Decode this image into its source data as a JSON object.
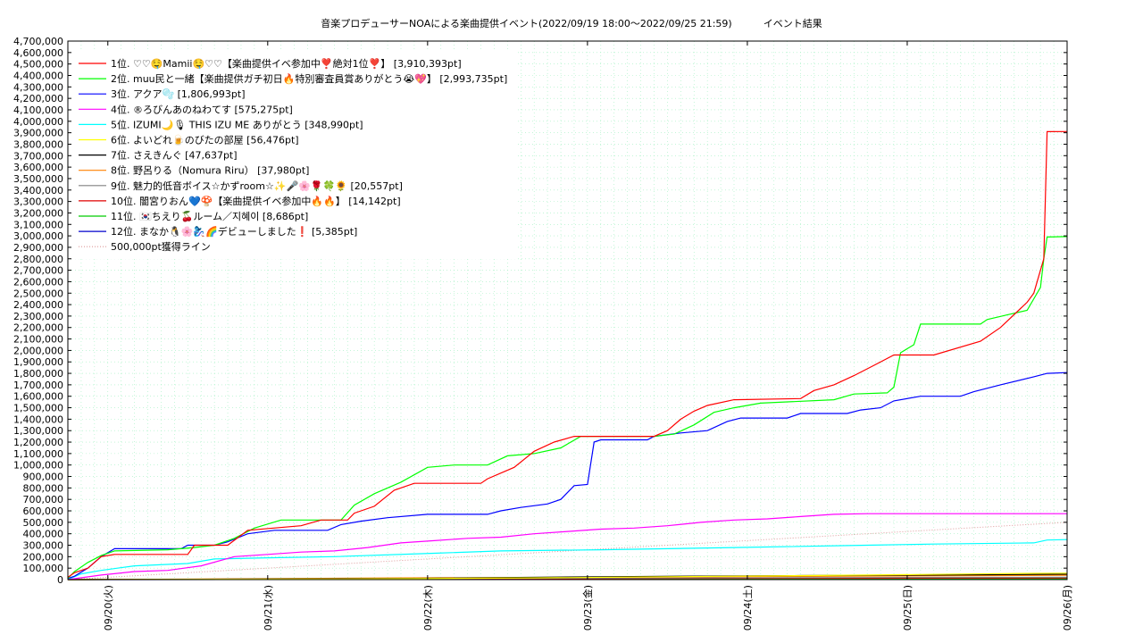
{
  "chart_data": {
    "type": "line",
    "title": "音楽プロデューサーNOAによる楽曲提供イベント(2022/09/19 18:00〜2022/09/25 21:59)",
    "subtitle": "イベント結果",
    "ylim": [
      0,
      4700000
    ],
    "ytick_step": 100000,
    "xlim_hours": [
      0,
      150
    ],
    "x_ticks": [
      {
        "label": "09/20(火)",
        "h": 6
      },
      {
        "label": "09/21(水)",
        "h": 30
      },
      {
        "label": "09/22(木)",
        "h": 54
      },
      {
        "label": "09/23(金)",
        "h": 78
      },
      {
        "label": "09/24(土)",
        "h": 102
      },
      {
        "label": "09/25(日)",
        "h": 126
      },
      {
        "label": "09/26(月)",
        "h": 150
      }
    ],
    "grid": true,
    "legend_position": "top-left",
    "series": [
      {
        "name": "1位. ♡♡🤤Mamii🤤♡♡【楽曲提供イベ参加中❣️絶対1位❣️】 [3,910,393pt]",
        "color": "#ff0000",
        "points": [
          [
            0,
            20000
          ],
          [
            1,
            60000
          ],
          [
            3,
            100000
          ],
          [
            5,
            200000
          ],
          [
            7,
            220000
          ],
          [
            14,
            220000
          ],
          [
            18,
            220000
          ],
          [
            19,
            300000
          ],
          [
            24,
            300000
          ],
          [
            27,
            430000
          ],
          [
            35,
            470000
          ],
          [
            38,
            520000
          ],
          [
            42,
            520000
          ],
          [
            43,
            580000
          ],
          [
            46,
            640000
          ],
          [
            49,
            780000
          ],
          [
            52,
            840000
          ],
          [
            62,
            840000
          ],
          [
            63,
            880000
          ],
          [
            67,
            980000
          ],
          [
            70,
            1120000
          ],
          [
            73,
            1200000
          ],
          [
            76,
            1250000
          ],
          [
            88,
            1250000
          ],
          [
            90,
            1300000
          ],
          [
            92,
            1400000
          ],
          [
            94,
            1470000
          ],
          [
            96,
            1520000
          ],
          [
            100,
            1570000
          ],
          [
            110,
            1580000
          ],
          [
            112,
            1650000
          ],
          [
            115,
            1700000
          ],
          [
            118,
            1780000
          ],
          [
            121,
            1870000
          ],
          [
            124,
            1960000
          ],
          [
            130,
            1960000
          ],
          [
            137,
            2080000
          ],
          [
            140,
            2200000
          ],
          [
            144,
            2420000
          ],
          [
            145,
            2500000
          ],
          [
            146.5,
            2800000
          ],
          [
            147,
            3910000
          ],
          [
            150,
            3910393
          ]
        ]
      },
      {
        "name": "2位. muu民と一緒【楽曲提供ガチ初日🔥特別審査員賞ありがとう😭💖】 [2,993,735pt]",
        "color": "#00ff00",
        "points": [
          [
            0,
            10000
          ],
          [
            1,
            70000
          ],
          [
            3,
            150000
          ],
          [
            5,
            210000
          ],
          [
            7,
            250000
          ],
          [
            15,
            260000
          ],
          [
            19,
            280000
          ],
          [
            22,
            300000
          ],
          [
            25,
            360000
          ],
          [
            28,
            450000
          ],
          [
            32,
            520000
          ],
          [
            41,
            520000
          ],
          [
            43,
            650000
          ],
          [
            46,
            750000
          ],
          [
            50,
            850000
          ],
          [
            54,
            980000
          ],
          [
            58,
            1000000
          ],
          [
            63,
            1000000
          ],
          [
            66,
            1080000
          ],
          [
            70,
            1100000
          ],
          [
            74,
            1150000
          ],
          [
            77,
            1250000
          ],
          [
            88,
            1250000
          ],
          [
            91,
            1270000
          ],
          [
            94,
            1350000
          ],
          [
            97,
            1460000
          ],
          [
            100,
            1500000
          ],
          [
            104,
            1540000
          ],
          [
            115,
            1570000
          ],
          [
            118,
            1620000
          ],
          [
            123,
            1630000
          ],
          [
            124,
            1680000
          ],
          [
            125,
            1980000
          ],
          [
            127,
            2050000
          ],
          [
            128,
            2230000
          ],
          [
            137,
            2230000
          ],
          [
            138,
            2270000
          ],
          [
            141,
            2310000
          ],
          [
            144,
            2350000
          ],
          [
            146,
            2550000
          ],
          [
            146.5,
            2800000
          ],
          [
            147,
            2990000
          ],
          [
            150,
            2993735
          ]
        ]
      },
      {
        "name": "3位. アクア🫧 [1,806,993pt]",
        "color": "#0000ff",
        "points": [
          [
            0,
            10000
          ],
          [
            1,
            30000
          ],
          [
            3,
            100000
          ],
          [
            5,
            200000
          ],
          [
            7,
            270000
          ],
          [
            17,
            270000
          ],
          [
            18,
            300000
          ],
          [
            22,
            300000
          ],
          [
            24,
            330000
          ],
          [
            27,
            400000
          ],
          [
            31,
            430000
          ],
          [
            39,
            430000
          ],
          [
            41,
            480000
          ],
          [
            44,
            510000
          ],
          [
            48,
            540000
          ],
          [
            54,
            570000
          ],
          [
            63,
            570000
          ],
          [
            65,
            600000
          ],
          [
            68,
            630000
          ],
          [
            72,
            660000
          ],
          [
            74,
            700000
          ],
          [
            76,
            820000
          ],
          [
            78,
            830000
          ],
          [
            79,
            1200000
          ],
          [
            80,
            1220000
          ],
          [
            87,
            1220000
          ],
          [
            88,
            1250000
          ],
          [
            92,
            1280000
          ],
          [
            96,
            1300000
          ],
          [
            99,
            1380000
          ],
          [
            101,
            1410000
          ],
          [
            108,
            1410000
          ],
          [
            110,
            1450000
          ],
          [
            117,
            1450000
          ],
          [
            119,
            1480000
          ],
          [
            122,
            1500000
          ],
          [
            124,
            1560000
          ],
          [
            128,
            1600000
          ],
          [
            134,
            1600000
          ],
          [
            136,
            1640000
          ],
          [
            140,
            1700000
          ],
          [
            145,
            1770000
          ],
          [
            147,
            1800000
          ],
          [
            150,
            1806993
          ]
        ]
      },
      {
        "name": "4位. ®ろびんあのねわてす [575,275pt]",
        "color": "#ff00ff",
        "points": [
          [
            0,
            0
          ],
          [
            5,
            40000
          ],
          [
            10,
            70000
          ],
          [
            15,
            80000
          ],
          [
            20,
            120000
          ],
          [
            25,
            200000
          ],
          [
            30,
            220000
          ],
          [
            35,
            240000
          ],
          [
            40,
            250000
          ],
          [
            45,
            280000
          ],
          [
            50,
            320000
          ],
          [
            55,
            340000
          ],
          [
            60,
            360000
          ],
          [
            65,
            370000
          ],
          [
            70,
            400000
          ],
          [
            75,
            420000
          ],
          [
            80,
            440000
          ],
          [
            85,
            450000
          ],
          [
            90,
            470000
          ],
          [
            95,
            500000
          ],
          [
            100,
            520000
          ],
          [
            105,
            530000
          ],
          [
            110,
            550000
          ],
          [
            115,
            570000
          ],
          [
            120,
            575000
          ],
          [
            150,
            575275
          ]
        ]
      },
      {
        "name": "5位. IZUMI🌙🎙 THIS IZU ME ありがとう [348,990pt]",
        "color": "#00ffff",
        "points": [
          [
            0,
            0
          ],
          [
            2,
            50000
          ],
          [
            5,
            80000
          ],
          [
            10,
            120000
          ],
          [
            18,
            140000
          ],
          [
            22,
            180000
          ],
          [
            30,
            190000
          ],
          [
            40,
            200000
          ],
          [
            55,
            230000
          ],
          [
            65,
            250000
          ],
          [
            80,
            260000
          ],
          [
            100,
            280000
          ],
          [
            120,
            300000
          ],
          [
            130,
            310000
          ],
          [
            145,
            320000
          ],
          [
            147,
            345000
          ],
          [
            150,
            348990
          ]
        ]
      },
      {
        "name": "6位. よいどれ🍺のびたの部屋 [56,476pt]",
        "color": "#ffff00",
        "points": [
          [
            0,
            0
          ],
          [
            40,
            5000
          ],
          [
            70,
            15000
          ],
          [
            100,
            30000
          ],
          [
            120,
            40000
          ],
          [
            140,
            52000
          ],
          [
            150,
            56476
          ]
        ]
      },
      {
        "name": "7位. さえきんぐ [47,637pt]",
        "color": "#000000",
        "points": [
          [
            0,
            0
          ],
          [
            20,
            3000
          ],
          [
            50,
            10000
          ],
          [
            80,
            25000
          ],
          [
            110,
            35000
          ],
          [
            130,
            40000
          ],
          [
            150,
            47637
          ]
        ]
      },
      {
        "name": "8位. 野呂りる（Nomura Riru） [37,980pt]",
        "color": "#ff8000",
        "points": [
          [
            0,
            0
          ],
          [
            20,
            5000
          ],
          [
            50,
            15000
          ],
          [
            80,
            20000
          ],
          [
            110,
            28000
          ],
          [
            140,
            35000
          ],
          [
            150,
            37980
          ]
        ]
      },
      {
        "name": "9位. 魅力的低音ボイス☆かずroom☆✨🎤🌸🌹🍀🌻 [20,557pt]",
        "color": "#808080",
        "points": [
          [
            0,
            0
          ],
          [
            30,
            5000
          ],
          [
            60,
            10000
          ],
          [
            90,
            14000
          ],
          [
            120,
            18000
          ],
          [
            150,
            20557
          ]
        ]
      },
      {
        "name": "10位. 闇宮りおん💙🍄【楽曲提供イベ参加中🔥🔥】 [14,142pt]",
        "color": "#e00000",
        "points": [
          [
            0,
            0
          ],
          [
            30,
            3000
          ],
          [
            60,
            7000
          ],
          [
            90,
            10000
          ],
          [
            120,
            12000
          ],
          [
            150,
            14142
          ]
        ]
      },
      {
        "name": "11位. 🇰🇷ちえり🍒ルーム／지혜이 [8,686pt]",
        "color": "#00cc00",
        "points": [
          [
            0,
            0
          ],
          [
            40,
            2000
          ],
          [
            80,
            5000
          ],
          [
            120,
            7000
          ],
          [
            150,
            8686
          ]
        ]
      },
      {
        "name": "12位. まなか🐧🌸🧞‍♀️🌈デビューしました❗️ [5,385pt]",
        "color": "#0000cc",
        "points": [
          [
            0,
            0
          ],
          [
            40,
            1000
          ],
          [
            80,
            3000
          ],
          [
            120,
            4500
          ],
          [
            150,
            5385
          ]
        ]
      }
    ],
    "reference_line": {
      "name": "500,000pt獲得ライン",
      "color": "#dd9999",
      "points": [
        [
          0,
          0
        ],
        [
          150,
          500000
        ]
      ]
    }
  }
}
